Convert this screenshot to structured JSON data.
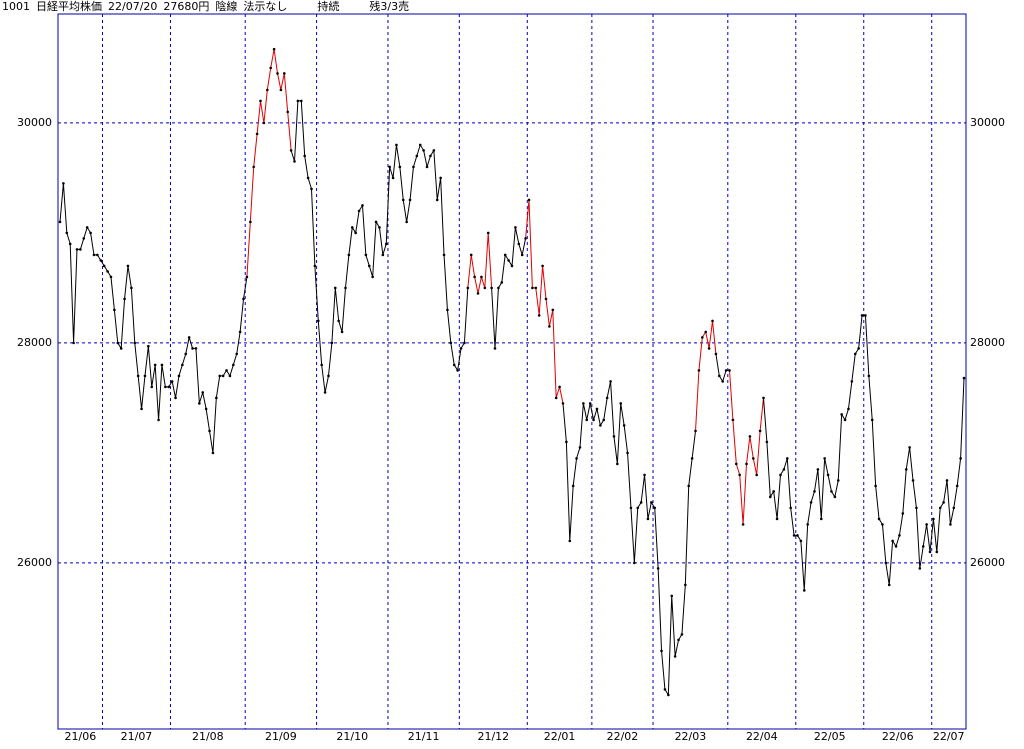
{
  "header": [
    "1001",
    "日経平均株価",
    "22/07/20",
    "27680円",
    "陰線",
    "法示なし",
    "持続",
    "残3/3売"
  ],
  "chart_data": {
    "type": "line",
    "ylim": [
      24490,
      30990
    ],
    "yticks": [
      26000,
      28000,
      30000
    ],
    "grid": true,
    "frame_color": "#0000a0",
    "grid_color": "#0000c0",
    "point_color": "#000000",
    "months": [
      {
        "label": "21/06",
        "runs": [
          {
            "color": "#000000",
            "values": [
              29100,
              29450,
              29000,
              28900,
              28000,
              28850,
              28850,
              28950,
              29050,
              29000,
              28800,
              28800,
              28750
            ]
          }
        ]
      },
      {
        "label": "21/07",
        "runs": [
          {
            "color": "#000000",
            "values": [
              28700,
              28650,
              28600,
              28300,
              28000,
              27950,
              28400,
              28700,
              28500,
              28000,
              27700,
              27400,
              27700,
              27970,
              27600,
              27800,
              27300,
              27800,
              27600,
              27600
            ]
          }
        ]
      },
      {
        "label": "21/08",
        "runs": [
          {
            "color": "#000000",
            "values": [
              27650,
              27500,
              27700,
              27800,
              27900,
              28050,
              27950,
              27950,
              27450,
              27550,
              27400,
              27200,
              27000,
              27500,
              27700,
              27700,
              27750,
              27700,
              27800,
              27900,
              28100,
              28400
            ]
          }
        ]
      },
      {
        "label": "21/09",
        "runs": [
          {
            "color": "#000000",
            "values": [
              28600
            ]
          },
          {
            "color": "#e00000",
            "values": [
              29100,
              29600,
              29900,
              30200,
              30000,
              30300,
              30500,
              30670,
              30450,
              30300,
              30450,
              30100,
              29750
            ]
          },
          {
            "color": "#000000",
            "values": [
              29650,
              30200,
              30200,
              29700,
              29500,
              29400,
              28700
            ]
          }
        ]
      },
      {
        "label": "21/10",
        "runs": [
          {
            "color": "#000000",
            "values": [
              28200,
              27800,
              27550,
              27700,
              28000,
              28500,
              28200,
              28100,
              28500,
              28800,
              29050,
              29000,
              29200,
              29250,
              28800,
              28700,
              28600,
              29100,
              29050,
              28800,
              28900
            ]
          }
        ]
      },
      {
        "label": "21/11",
        "runs": [
          {
            "color": "#000000",
            "values": [
              29600,
              29500,
              29800,
              29600,
              29300,
              29100,
              29300,
              29600,
              29700,
              29800,
              29750,
              29600,
              29700,
              29750,
              29300,
              29500,
              28800,
              28300,
              28000,
              27800,
              27750
            ]
          }
        ]
      },
      {
        "label": "21/12",
        "runs": [
          {
            "color": "#000000",
            "values": [
              27950,
              28000,
              28500
            ]
          },
          {
            "color": "#e00000",
            "values": [
              28800,
              28600,
              28450,
              28600,
              28500,
              29000,
              28500
            ]
          },
          {
            "color": "#000000",
            "values": [
              27950,
              28500,
              28550,
              28800,
              28750,
              28700,
              29050,
              28900,
              28800,
              28950
            ]
          }
        ]
      },
      {
        "label": "22/01",
        "runs": [
          {
            "color": "#e00000",
            "values": [
              29300,
              28500,
              28500,
              28250,
              28700,
              28400,
              28150,
              28300,
              27500,
              27600,
              27450
            ]
          },
          {
            "color": "#000000",
            "values": [
              27100,
              26200,
              26700,
              26950,
              27050,
              27450,
              27300,
              27450
            ]
          }
        ]
      },
      {
        "label": "22/02",
        "runs": [
          {
            "color": "#000000",
            "values": [
              27300,
              27400,
              27250,
              27300,
              27500,
              27650,
              27150,
              26900,
              27450,
              27250,
              27000,
              26500,
              26000,
              26500,
              26550,
              26800,
              26400,
              26550
            ]
          }
        ]
      },
      {
        "label": "22/03",
        "runs": [
          {
            "color": "#000000",
            "values": [
              26500,
              25950,
              25200,
              24850,
              24800,
              25700,
              25150,
              25300,
              25350,
              25800,
              26700,
              26950,
              27200
            ]
          },
          {
            "color": "#e00000",
            "values": [
              27750,
              28050,
              28100,
              27950,
              28200,
              27900
            ]
          },
          {
            "color": "#000000",
            "values": [
              27700,
              27650,
              27750
            ]
          }
        ]
      },
      {
        "label": "22/04",
        "runs": [
          {
            "color": "#000000",
            "values": [
              27750
            ]
          },
          {
            "color": "#e00000",
            "values": [
              27300,
              26900,
              26800,
              26350,
              26900,
              27150,
              26950,
              26800,
              27200,
              27500
            ]
          },
          {
            "color": "#000000",
            "values": [
              27100,
              26600,
              26650,
              26400,
              26800,
              26850,
              26950,
              26500,
              26250
            ]
          }
        ]
      },
      {
        "label": "22/05",
        "runs": [
          {
            "color": "#000000",
            "values": [
              26250,
              26200,
              25750,
              26350,
              26550,
              26650,
              26850,
              26400,
              26950,
              26800,
              26650,
              26600,
              26750,
              27350,
              27300,
              27400,
              27650,
              27900,
              27950,
              28250
            ]
          }
        ]
      },
      {
        "label": "22/06",
        "runs": [
          {
            "color": "#000000",
            "values": [
              28250,
              27700,
              27300,
              26700,
              26400,
              26350,
              26000,
              25800,
              26200,
              26150,
              26250,
              26450,
              26850,
              27050,
              26750,
              26500,
              25950,
              26150,
              26350,
              26100
            ]
          }
        ]
      },
      {
        "label": "22/07",
        "runs": [
          {
            "color": "#000000",
            "values": [
              26400,
              26100,
              26500,
              26550,
              26750,
              26350,
              26500,
              26700,
              26950,
              27680
            ]
          }
        ]
      }
    ]
  }
}
